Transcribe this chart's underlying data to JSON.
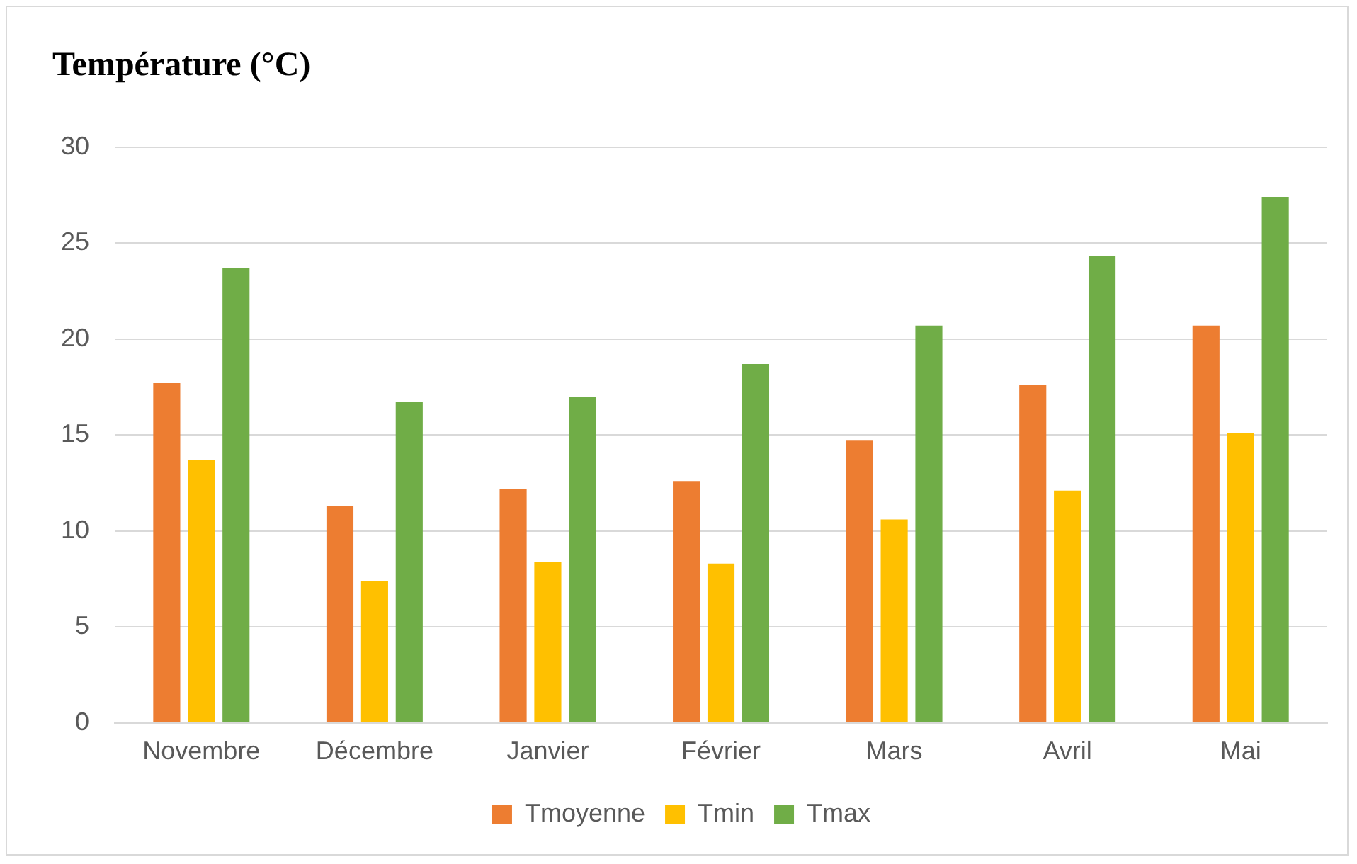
{
  "chart_data": {
    "type": "bar",
    "title": "Température (°C)",
    "categories": [
      "Novembre",
      "Décembre",
      "Janvier",
      "Février",
      "Mars",
      "Avril",
      "Mai"
    ],
    "series": [
      {
        "name": "Tmoyenne",
        "color": "#ed7d31",
        "values": [
          17.7,
          11.3,
          12.2,
          12.6,
          14.7,
          17.6,
          20.7
        ]
      },
      {
        "name": "Tmin",
        "color": "#ffc000",
        "values": [
          13.7,
          7.4,
          8.4,
          8.3,
          10.6,
          12.1,
          15.1
        ]
      },
      {
        "name": "Tmax",
        "color": "#70ad47",
        "values": [
          23.7,
          16.7,
          17.0,
          18.7,
          20.7,
          24.3,
          27.4
        ]
      }
    ],
    "ylim": [
      0,
      30
    ],
    "yticks": [
      0,
      5,
      10,
      15,
      20,
      25,
      30
    ],
    "grid": "y",
    "legend": "bottom"
  }
}
